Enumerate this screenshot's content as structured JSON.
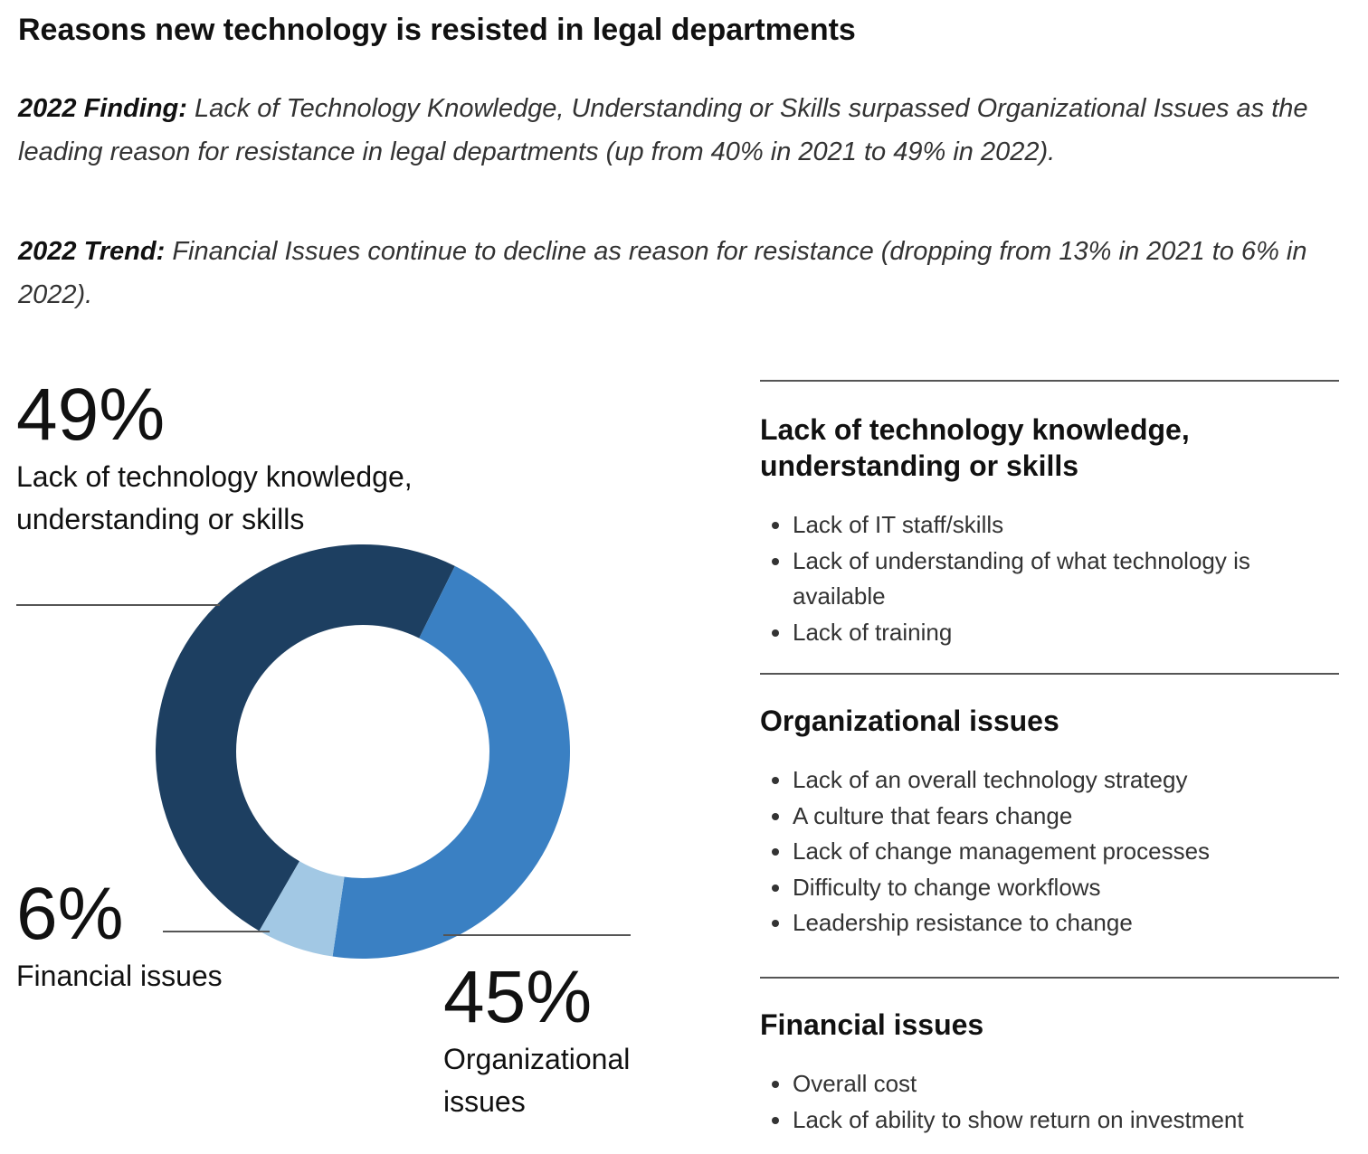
{
  "title": "Reasons new technology is resisted in legal departments",
  "notes": [
    {
      "label": "2022 Finding:",
      "text": "Lack of Technology Knowledge, Understanding or Skills surpassed Organizational Issues as the leading reason for resistance in legal departments (up from 40% in 2021 to 49% in 2022)."
    },
    {
      "label": "2022 Trend:",
      "text": "Financial Issues continue to decline as reason for resistance (dropping from 13% in 2021 to 6% in 2022)."
    }
  ],
  "chart_data": {
    "type": "donut",
    "categories": [
      "Lack of technology knowledge, understanding or skills",
      "Organizational issues",
      "Financial issues"
    ],
    "values": [
      49,
      45,
      6
    ],
    "value_labels": [
      "49%",
      "45%",
      "6%"
    ],
    "colors": [
      "#1d3f61",
      "#3a80c3",
      "#a2c8e4"
    ]
  },
  "panel": {
    "groups": [
      {
        "heading": "Lack of technology knowledge, understanding or skills",
        "items": [
          "Lack of IT staff/skills",
          "Lack of understanding of what technology is available",
          "Lack of training"
        ]
      },
      {
        "heading": "Organizational issues",
        "items": [
          "Lack of an overall technology strategy",
          "A culture that fears change",
          "Lack of change management processes",
          "Difficulty to change workflows",
          "Leadership resistance to change"
        ]
      },
      {
        "heading": "Financial issues",
        "items": [
          "Overall cost",
          "Lack of ability to show return on investment"
        ]
      }
    ]
  }
}
